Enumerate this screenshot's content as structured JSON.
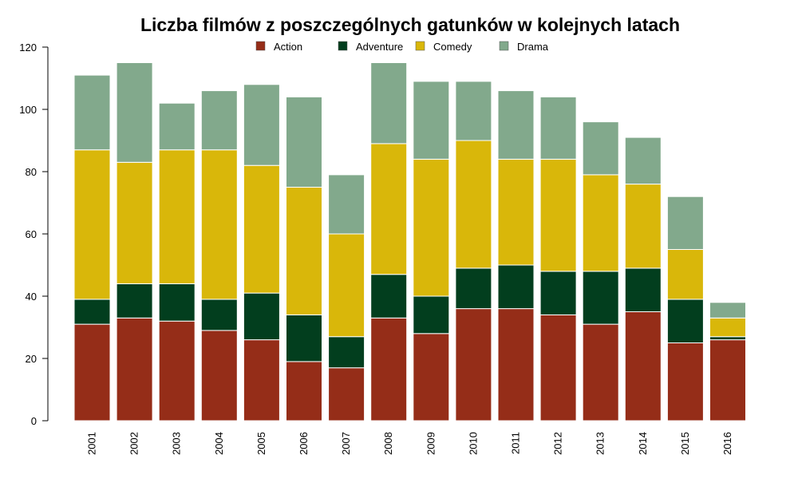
{
  "chart_data": {
    "type": "bar",
    "stacked": true,
    "title": "Liczba filmów z poszczególnych gatunków w kolejnych latach",
    "xlabel": "",
    "ylabel": "",
    "ylim": [
      0,
      120
    ],
    "yticks": [
      0,
      20,
      40,
      60,
      80,
      100,
      120
    ],
    "grid": false,
    "legend_position": "top",
    "categories": [
      "2001",
      "2002",
      "2003",
      "2004",
      "2005",
      "2006",
      "2007",
      "2008",
      "2009",
      "2010",
      "2011",
      "2012",
      "2013",
      "2014",
      "2015",
      "2016"
    ],
    "series": [
      {
        "name": "Action",
        "color": "#952d18",
        "values": [
          31,
          33,
          32,
          29,
          26,
          19,
          17,
          33,
          28,
          36,
          36,
          34,
          31,
          35,
          25,
          26
        ]
      },
      {
        "name": "Adventure",
        "color": "#023e1e",
        "values": [
          8,
          11,
          12,
          10,
          15,
          15,
          10,
          14,
          12,
          13,
          14,
          14,
          17,
          14,
          14,
          1
        ]
      },
      {
        "name": "Comedy",
        "color": "#d9b70a",
        "values": [
          48,
          39,
          43,
          48,
          41,
          41,
          33,
          42,
          44,
          41,
          34,
          36,
          31,
          27,
          16,
          6
        ]
      },
      {
        "name": "Drama",
        "color": "#82a98c",
        "values": [
          24,
          32,
          15,
          19,
          26,
          29,
          19,
          26,
          25,
          19,
          22,
          20,
          17,
          15,
          17,
          5
        ]
      }
    ]
  }
}
